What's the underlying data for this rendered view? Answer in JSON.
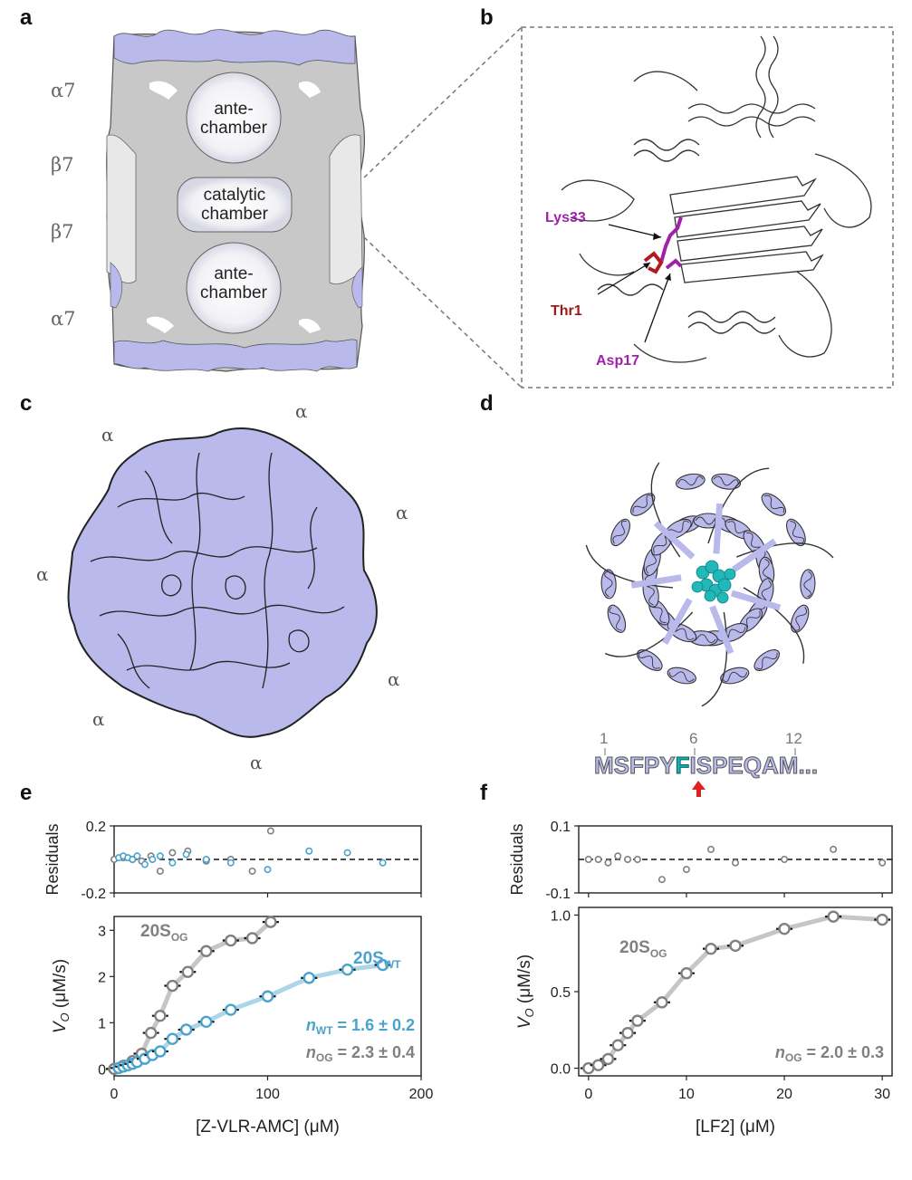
{
  "panels": {
    "a": {
      "letter": "a",
      "subunits": [
        "α7",
        "β7",
        "β7",
        "α7"
      ],
      "labels": {
        "ante_top_1": "ante-",
        "ante_top_2": "chamber",
        "catalytic_1": "catalytic",
        "catalytic_2": "chamber",
        "ante_bottom_1": "ante-",
        "ante_bottom_2": "chamber"
      }
    },
    "b": {
      "letter": "b",
      "residues": [
        "Lys33",
        "Thr1",
        "Asp17"
      ],
      "colors": {
        "lys": "#a020a8",
        "thr": "#a01818",
        "asp": "#a020a8"
      }
    },
    "c": {
      "letter": "c",
      "ring_label": "α"
    },
    "d": {
      "letter": "d",
      "sequence": [
        "M",
        "S",
        "F",
        "P",
        "Y",
        "F",
        "I",
        "S",
        "P",
        "E",
        "Q",
        "A",
        "M",
        "..."
      ],
      "positions": [
        "1",
        "6",
        "12"
      ],
      "highlight_color": "#18b0b0",
      "arrow_color": "#e0201c"
    },
    "e": {
      "letter": "e"
    },
    "f": {
      "letter": "f"
    }
  },
  "colors": {
    "wt": "#4aa3cc",
    "og": "#808080",
    "surface": "#c8c8f2",
    "slab": "#c9c9c9"
  },
  "chart_data": [
    {
      "panel": "e",
      "type": "scatter",
      "xlabel": "[Z-VLR-AMC] (μM)",
      "ylabel": "V_O (μM/s)",
      "residual_label": "Residuals",
      "xlim": [
        0,
        200
      ],
      "ylim": [
        -0.15,
        3.3
      ],
      "xticks": [
        "0",
        "100",
        "200"
      ],
      "yticks": [
        "0",
        "1",
        "2",
        "3"
      ],
      "residual_ylim": [
        -0.2,
        0.2
      ],
      "residual_yticks": [
        "-0.2",
        "0.2"
      ],
      "series": [
        {
          "name": "20S",
          "subscript": "OG",
          "x": [
            0,
            6,
            12,
            18,
            24,
            30,
            38,
            48,
            60,
            76,
            90,
            102
          ],
          "y": [
            0.0,
            0.07,
            0.17,
            0.33,
            0.78,
            1.15,
            1.8,
            2.1,
            2.55,
            2.78,
            2.83,
            3.18
          ],
          "residuals": [
            0.0,
            0.01,
            0.0,
            -0.01,
            0.02,
            -0.07,
            0.04,
            0.05,
            -0.01,
            0.0,
            -0.07,
            0.17
          ]
        },
        {
          "name": "20S",
          "subscript": "WT",
          "x": [
            3,
            6,
            9,
            12,
            15,
            20,
            25,
            30,
            38,
            47,
            60,
            76,
            100,
            127,
            152,
            175
          ],
          "y": [
            0.02,
            0.05,
            0.08,
            0.11,
            0.15,
            0.22,
            0.3,
            0.38,
            0.65,
            0.85,
            1.02,
            1.28,
            1.57,
            1.97,
            2.15,
            2.25
          ],
          "residuals": [
            0.01,
            0.02,
            0.01,
            0.0,
            0.02,
            -0.03,
            0.0,
            0.02,
            -0.02,
            0.03,
            0.0,
            -0.02,
            -0.06,
            0.05,
            0.04,
            -0.02
          ]
        }
      ],
      "annotations": {
        "n_wt": "= 1.6 ± 0.2",
        "n_og": "= 2.3 ± 0.4",
        "n_symbol": "n"
      }
    },
    {
      "panel": "f",
      "type": "scatter",
      "xlabel": "[LF2] (μM)",
      "ylabel": "V_O (μM/s)",
      "residual_label": "Residuals",
      "xlim": [
        -1,
        31
      ],
      "ylim": [
        -0.05,
        1.05
      ],
      "xticks": [
        "0",
        "10",
        "20",
        "30"
      ],
      "yticks": [
        "0.0",
        "0.5",
        "1.0"
      ],
      "residual_ylim": [
        -0.1,
        0.1
      ],
      "residual_yticks": [
        "-0.1",
        "0.1"
      ],
      "series": [
        {
          "name": "20S",
          "subscript": "OG",
          "x": [
            0,
            1,
            2,
            3,
            4,
            5,
            7.5,
            10,
            12.5,
            15,
            20,
            25,
            30
          ],
          "y": [
            0.0,
            0.02,
            0.06,
            0.15,
            0.23,
            0.31,
            0.43,
            0.62,
            0.78,
            0.8,
            0.91,
            0.99,
            0.97
          ],
          "residuals": [
            0.0,
            0.0,
            -0.01,
            0.01,
            0.0,
            0.0,
            -0.06,
            -0.03,
            0.03,
            -0.01,
            0.0,
            0.03,
            -0.01
          ]
        }
      ],
      "annotations": {
        "n_og": "= 2.0 ± 0.3",
        "n_symbol": "n"
      }
    }
  ]
}
